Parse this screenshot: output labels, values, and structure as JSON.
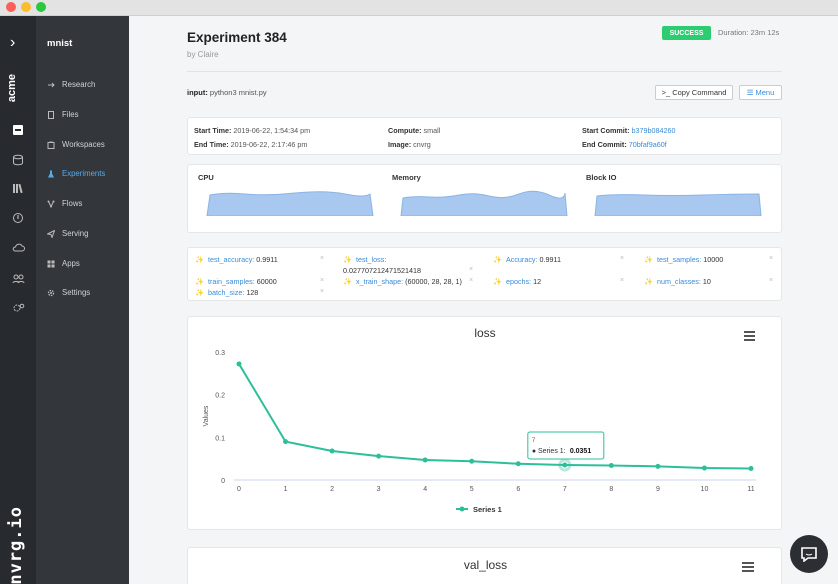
{
  "window": {
    "controls": [
      {
        "name": "close",
        "color": "#fc5f57"
      },
      {
        "name": "minimize",
        "color": "#fdbc2e"
      },
      {
        "name": "maximize",
        "color": "#28c840"
      }
    ]
  },
  "rail": {
    "collapse_icon": "›",
    "org": "acme",
    "logo": "cnvrg.io"
  },
  "sidebar": {
    "project": "mnist",
    "items": [
      {
        "label": "Research",
        "icon": "research-icon",
        "active": false
      },
      {
        "label": "Files",
        "icon": "files-icon",
        "active": false
      },
      {
        "label": "Workspaces",
        "icon": "workspaces-icon",
        "active": false
      },
      {
        "label": "Experiments",
        "icon": "experiments-icon",
        "active": true
      },
      {
        "label": "Flows",
        "icon": "flows-icon",
        "active": false
      },
      {
        "label": "Serving",
        "icon": "serving-icon",
        "active": false
      },
      {
        "label": "Apps",
        "icon": "apps-icon",
        "active": false
      },
      {
        "label": "Settings",
        "icon": "settings-icon",
        "active": false
      }
    ]
  },
  "header": {
    "title": "Experiment 384",
    "by": "by Claire",
    "status": "SUCCESS",
    "duration": "Duration: 23m 12s",
    "status_color": "#2ecc71"
  },
  "command": {
    "input_label": "input:",
    "input_value": "python3 mnist.py",
    "copy_label": ">_ Copy Command",
    "menu_label": "Menu"
  },
  "info": {
    "start_time_label": "Start Time:",
    "start_time": "2019-06-22, 1:54:34 pm",
    "end_time_label": "End Time:",
    "end_time": "2019-06-22, 2:17:46 pm",
    "compute_label": "Compute:",
    "compute": "small",
    "image_label": "Image:",
    "image": "cnvrg",
    "start_commit_label": "Start Commit:",
    "start_commit": "b379b084260",
    "end_commit_label": "End Commit:",
    "end_commit": "70bfaf9a60f"
  },
  "resources": {
    "labels": [
      "CPU",
      "Memory",
      "Block IO"
    ]
  },
  "metrics": [
    {
      "key": "test_accuracy:",
      "value": "0.9911"
    },
    {
      "key": "test_loss:",
      "value": "0.027707212471521418"
    },
    {
      "key": "Accuracy:",
      "value": "0.9911"
    },
    {
      "key": "test_samples:",
      "value": "10000"
    },
    {
      "key": "train_samples:",
      "value": "60000"
    },
    {
      "key": "x_train_shape:",
      "value": "(60000, 28, 28, 1)"
    },
    {
      "key": "epochs:",
      "value": "12"
    },
    {
      "key": "num_classes:",
      "value": "10"
    },
    {
      "key": "batch_size:",
      "value": "128"
    }
  ],
  "chart_data": [
    {
      "type": "line",
      "title": "loss",
      "xlabel": "",
      "ylabel": "Values",
      "x": [
        0,
        1,
        2,
        3,
        4,
        5,
        6,
        7,
        8,
        9,
        10,
        11
      ],
      "series": [
        {
          "name": "Series 1",
          "values": [
            0.272,
            0.09,
            0.068,
            0.056,
            0.047,
            0.044,
            0.038,
            0.0351,
            0.034,
            0.032,
            0.028,
            0.027
          ]
        }
      ],
      "xlim": [
        0,
        11
      ],
      "ylim": [
        0,
        0.3
      ],
      "yticks": [
        0,
        0.1,
        0.2,
        0.3
      ],
      "grid": false,
      "legend": "bottom",
      "color": "#2dbf9a",
      "tooltip": {
        "x": "7",
        "text": "Series 1:",
        "value": "0.0351"
      }
    },
    {
      "type": "line",
      "title": "val_loss"
    }
  ]
}
